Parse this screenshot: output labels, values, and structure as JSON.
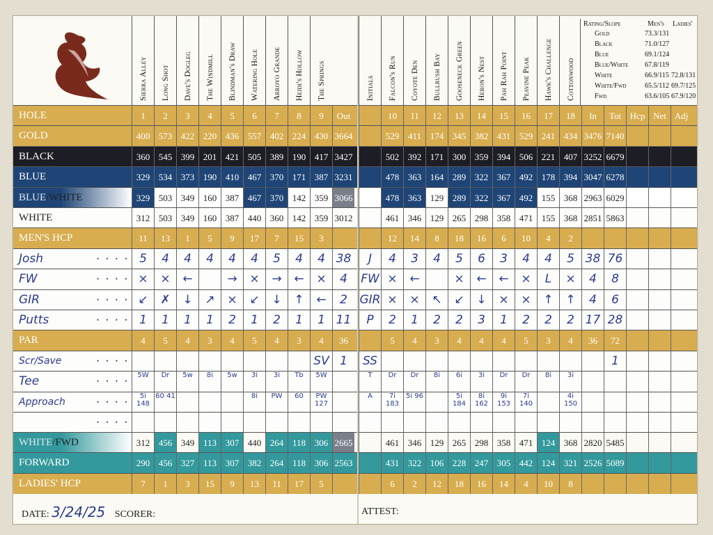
{
  "left_courses": [
    "Sierra Alley",
    "Long Shot",
    "Dave's Dogleg",
    "The Windmill",
    "Blindman's Draw",
    "Watering Hole",
    "Arroyo Grande",
    "Heidi's Hollow",
    "The Springs"
  ],
  "right_courses": [
    "Falcon's Run",
    "Coyote Den",
    "Bullrush Bay",
    "Gooseneck Green",
    "Heron's Nest",
    "Pah Rah Point",
    "Peavine Peak",
    "Hawk's Challenge",
    "Cottonwood"
  ],
  "initials_label": "Initials",
  "rating": {
    "header_rs": "Rating/Slope",
    "header_men": "Men's",
    "header_ladies": "Ladies'",
    "rows": [
      {
        "tee": "Gold",
        "men": "73.3/131",
        "ladies": ""
      },
      {
        "tee": "Black",
        "men": "71.0/127",
        "ladies": ""
      },
      {
        "tee": "Blue",
        "men": "69.1/124",
        "ladies": ""
      },
      {
        "tee": "Blue/White",
        "men": "67.8/119",
        "ladies": ""
      },
      {
        "tee": "White",
        "men": "66.9/115",
        "ladies": "72.8/131"
      },
      {
        "tee": "White/Fwd",
        "men": "65.5/112",
        "ladies": "69.7/125"
      },
      {
        "tee": "Fwd",
        "men": "63.6/105",
        "ladies": "67.9/120"
      }
    ]
  },
  "rows": {
    "hole": {
      "label": "HOLE",
      "left": [
        "1",
        "2",
        "3",
        "4",
        "5",
        "6",
        "7",
        "8",
        "9",
        "Out"
      ],
      "right": [
        "",
        "10",
        "11",
        "12",
        "13",
        "14",
        "15",
        "16",
        "17",
        "18",
        "In",
        "Tot",
        "Hcp",
        "Net",
        "Adj"
      ]
    },
    "gold": {
      "label": "GOLD",
      "left": [
        "400",
        "573",
        "422",
        "220",
        "436",
        "557",
        "402",
        "224",
        "430",
        "3664"
      ],
      "right": [
        "",
        "529",
        "411",
        "174",
        "345",
        "382",
        "431",
        "529",
        "241",
        "434",
        "3476",
        "7140",
        "",
        "",
        ""
      ]
    },
    "black": {
      "label": "BLACK",
      "left": [
        "360",
        "545",
        "399",
        "201",
        "421",
        "505",
        "389",
        "190",
        "417",
        "3427"
      ],
      "right": [
        "",
        "502",
        "392",
        "171",
        "300",
        "359",
        "394",
        "506",
        "221",
        "407",
        "3252",
        "6679",
        "",
        "",
        ""
      ]
    },
    "blue": {
      "label": "BLUE",
      "left": [
        "329",
        "534",
        "373",
        "190",
        "410",
        "467",
        "370",
        "171",
        "387",
        "3231"
      ],
      "right": [
        "",
        "478",
        "363",
        "164",
        "289",
        "322",
        "367",
        "492",
        "178",
        "394",
        "3047",
        "6278",
        "",
        "",
        ""
      ]
    },
    "bluewhite": {
      "label_a": "BLUE",
      "label_b": "/WHITE",
      "left": [
        "329",
        "503",
        "349",
        "160",
        "387",
        "467",
        "370",
        "142",
        "359",
        "3066"
      ],
      "right": [
        "",
        "478",
        "363",
        "129",
        "289",
        "322",
        "367",
        "492",
        "155",
        "368",
        "2963",
        "6029",
        "",
        "",
        ""
      ]
    },
    "white": {
      "label": "WHITE",
      "left": [
        "312",
        "503",
        "349",
        "160",
        "387",
        "440",
        "360",
        "142",
        "359",
        "3012"
      ],
      "right": [
        "",
        "461",
        "346",
        "129",
        "265",
        "298",
        "358",
        "471",
        "155",
        "368",
        "2851",
        "5863",
        "",
        "",
        ""
      ]
    },
    "menhcp": {
      "label": "MEN'S HCP",
      "left": [
        "11",
        "13",
        "1",
        "5",
        "9",
        "17",
        "7",
        "15",
        "3",
        ""
      ],
      "right": [
        "",
        "12",
        "14",
        "8",
        "18",
        "16",
        "6",
        "10",
        "4",
        "2",
        "",
        "",
        "",
        "",
        ""
      ]
    },
    "josh": {
      "label": "Josh",
      "left": [
        "5",
        "4",
        "4",
        "4",
        "4",
        "4",
        "5",
        "4",
        "4",
        "38"
      ],
      "right": [
        "J",
        "4",
        "3",
        "4",
        "5",
        "6",
        "3",
        "4",
        "4",
        "5",
        "38",
        "76",
        "",
        "",
        ""
      ]
    },
    "fw": {
      "label": "FW",
      "left": [
        "×",
        "×",
        "←",
        "",
        "→",
        "×",
        "→",
        "←",
        "×",
        "4"
      ],
      "right": [
        "FW",
        "×",
        "←",
        "",
        "×",
        "←",
        "←",
        "×",
        "L",
        "×",
        "4",
        "8",
        "",
        "",
        ""
      ]
    },
    "gir": {
      "label": "GIR",
      "left": [
        "↙",
        "✗",
        "↓",
        "↗",
        "×",
        "↙",
        "↓",
        "↑",
        "←",
        "2"
      ],
      "right": [
        "GIR",
        "×",
        "×",
        "↖",
        "↙",
        "↓",
        "×",
        "×",
        "↑",
        "↑",
        "4",
        "6",
        "",
        "",
        ""
      ]
    },
    "putts": {
      "label": "Putts",
      "left": [
        "1",
        "1",
        "1",
        "1",
        "2",
        "1",
        "2",
        "1",
        "1",
        "11"
      ],
      "right": [
        "P",
        "2",
        "1",
        "2",
        "2",
        "3",
        "1",
        "2",
        "2",
        "2",
        "17",
        "28",
        "",
        "",
        ""
      ]
    },
    "par": {
      "label": "PAR",
      "left": [
        "4",
        "5",
        "4",
        "3",
        "4",
        "5",
        "4",
        "3",
        "4",
        "36"
      ],
      "right": [
        "",
        "5",
        "4",
        "3",
        "4",
        "4",
        "4",
        "5",
        "3",
        "4",
        "36",
        "72",
        "",
        "",
        ""
      ]
    },
    "scr": {
      "label": "Scr/Save",
      "left": [
        "",
        "",
        "",
        "",
        "",
        "",
        "",
        "",
        "SV",
        "1"
      ],
      "right": [
        "SS",
        "",
        "",
        "",
        "",
        "",
        "",
        "",
        "",
        "",
        "",
        "1",
        "",
        "",
        ""
      ]
    },
    "tee": {
      "label": "Tee",
      "left": [
        "5W",
        "Dr",
        "5w",
        "8i",
        "5w",
        "3i",
        "3i",
        "Tb",
        "5W",
        ""
      ],
      "right": [
        "T",
        "Dr",
        "Dr",
        "8i",
        "6i",
        "3i",
        "Dr",
        "Dr",
        "8i",
        "3i",
        "",
        "",
        "",
        "",
        ""
      ]
    },
    "approach": {
      "label": "Approach",
      "left": [
        "5i 148",
        "60 41",
        "",
        "",
        "",
        "8i",
        "PW",
        "60",
        "PW 127",
        ""
      ],
      "right": [
        "A",
        "7i 183",
        "5i 96",
        "",
        "5i 184",
        "8i 162",
        "9i 153",
        "7i 140",
        "",
        "4i 150",
        "",
        "",
        "",
        "",
        ""
      ]
    },
    "blank": {
      "label": "",
      "left": [
        "",
        "",
        "",
        "",
        "",
        "",
        "",
        "",
        "",
        ""
      ],
      "right": [
        "",
        "",
        "",
        "",
        "",
        "",
        "",
        "",
        "",
        "",
        "",
        "",
        "",
        "",
        ""
      ]
    },
    "whitefwd": {
      "label_a": "WHITE",
      "label_b": "/FWD",
      "left": [
        "312",
        "456",
        "349",
        "113",
        "307",
        "440",
        "264",
        "118",
        "306",
        "2665"
      ],
      "right": [
        "",
        "461",
        "346",
        "129",
        "265",
        "298",
        "358",
        "471",
        "124",
        "368",
        "2820",
        "5485",
        "",
        "",
        ""
      ]
    },
    "forward": {
      "label": "FORWARD",
      "left": [
        "290",
        "456",
        "327",
        "113",
        "307",
        "382",
        "264",
        "118",
        "306",
        "2563"
      ],
      "right": [
        "",
        "431",
        "322",
        "106",
        "228",
        "247",
        "305",
        "442",
        "124",
        "321",
        "2526",
        "5089",
        "",
        "",
        ""
      ]
    },
    "ladieshcp": {
      "label": "LADIES' HCP",
      "left": [
        "7",
        "1",
        "3",
        "15",
        "9",
        "13",
        "11",
        "17",
        "5",
        ""
      ],
      "right": [
        "",
        "6",
        "2",
        "12",
        "18",
        "16",
        "14",
        "4",
        "10",
        "8",
        "",
        "",
        "",
        "",
        ""
      ]
    }
  },
  "footer": {
    "date_label": "DATE:",
    "date_value": "3/24/25",
    "scorer_label": "SCORER:",
    "attest_label": "ATTEST:"
  },
  "colors": {
    "gold": "#d8ad4f",
    "black": "#1d1d25",
    "blue": "#1f4577",
    "teal": "#33999d"
  }
}
